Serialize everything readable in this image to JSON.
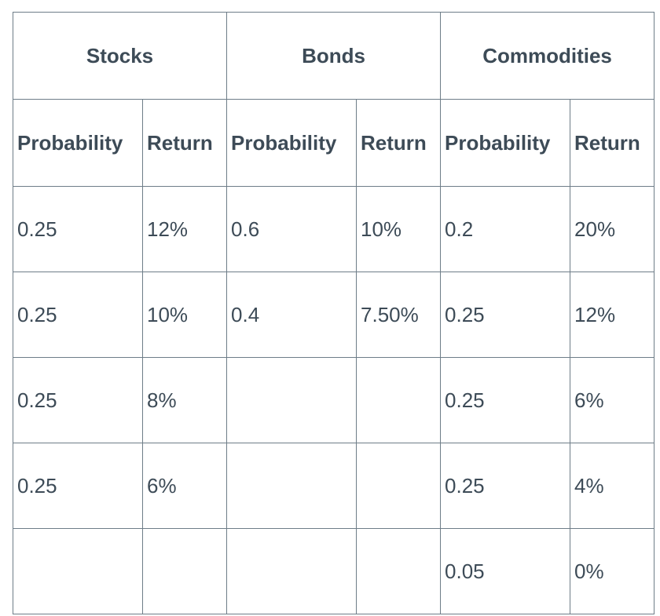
{
  "colors": {
    "text": "#3d4b57",
    "border": "#6e7d88",
    "background": "#ffffff"
  },
  "table": {
    "groups": [
      {
        "label": "Stocks"
      },
      {
        "label": "Bonds"
      },
      {
        "label": "Commodities"
      }
    ],
    "sub_headers": [
      "Probability",
      "Return",
      "Probability",
      "Return",
      "Probability",
      "Return"
    ],
    "rows": [
      [
        "0.25",
        "12%",
        "0.6",
        "10%",
        "0.2",
        "20%"
      ],
      [
        "0.25",
        "10%",
        "0.4",
        "7.50%",
        "0.25",
        "12%"
      ],
      [
        "0.25",
        "8%",
        "",
        "",
        "0.25",
        "6%"
      ],
      [
        "0.25",
        "6%",
        "",
        "",
        "0.25",
        "4%"
      ],
      [
        "",
        "",
        "",
        "",
        "0.05",
        "0%"
      ]
    ]
  },
  "chart_data": {
    "type": "table",
    "title": "",
    "column_groups": [
      "Stocks",
      "Bonds",
      "Commodities"
    ],
    "columns": [
      "Probability",
      "Return",
      "Probability",
      "Return",
      "Probability",
      "Return"
    ],
    "series": [
      {
        "name": "Stocks",
        "probabilities": [
          0.25,
          0.25,
          0.25,
          0.25
        ],
        "returns_pct": [
          12,
          10,
          8,
          6
        ]
      },
      {
        "name": "Bonds",
        "probabilities": [
          0.6,
          0.4
        ],
        "returns_pct": [
          10,
          7.5
        ]
      },
      {
        "name": "Commodities",
        "probabilities": [
          0.2,
          0.25,
          0.25,
          0.25,
          0.05
        ],
        "returns_pct": [
          20,
          12,
          6,
          4,
          0
        ]
      }
    ]
  }
}
